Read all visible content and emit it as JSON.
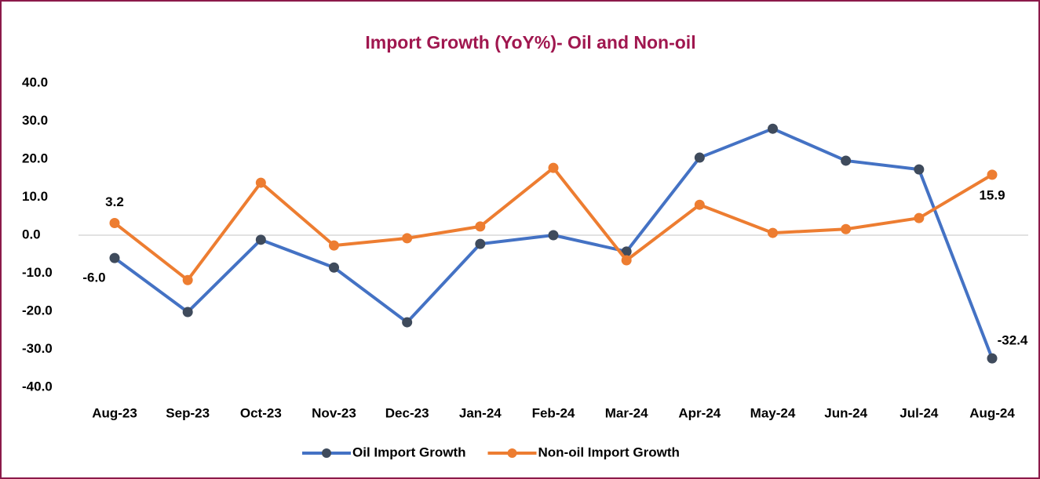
{
  "chart_data": {
    "type": "line",
    "title": "Import Growth (YoY%)- Oil and Non-oil",
    "categories": [
      "Aug-23",
      "Sep-23",
      "Oct-23",
      "Nov-23",
      "Dec-23",
      "Jan-24",
      "Feb-24",
      "Mar-24",
      "Apr-24",
      "May-24",
      "Jun-24",
      "Jul-24",
      "Aug-24"
    ],
    "series": [
      {
        "name": "Oil Import Growth",
        "color": "#4472c4",
        "marker_color": "#3f4b5c",
        "values": [
          -6.0,
          -20.2,
          -1.2,
          -8.5,
          -22.9,
          -2.3,
          0.0,
          -4.3,
          20.4,
          28.0,
          19.6,
          17.3,
          -32.4
        ],
        "value_labels": [
          "-6.0",
          null,
          null,
          null,
          null,
          null,
          null,
          null,
          null,
          null,
          null,
          null,
          "-32.4"
        ]
      },
      {
        "name": "Non-oil Import Growth",
        "color": "#ed7d31",
        "marker_color": "#ed7d31",
        "values": [
          3.2,
          -11.8,
          13.8,
          -2.7,
          -0.8,
          2.3,
          17.7,
          -6.6,
          8.0,
          0.6,
          1.6,
          4.5,
          15.9
        ],
        "value_labels": [
          "3.2",
          null,
          null,
          null,
          null,
          null,
          null,
          null,
          null,
          null,
          null,
          null,
          "15.9"
        ]
      }
    ],
    "ylim": [
      -40,
      40
    ],
    "yticks": [
      {
        "value": -40,
        "label": "-40.0"
      },
      {
        "value": -30,
        "label": "-30.0"
      },
      {
        "value": -20,
        "label": "-20.0"
      },
      {
        "value": -10,
        "label": "-10.0"
      },
      {
        "value": 0,
        "label": "0.0"
      },
      {
        "value": 10,
        "label": "10.0"
      },
      {
        "value": 20,
        "label": "20.0"
      },
      {
        "value": 30,
        "label": "30.0"
      },
      {
        "value": 40,
        "label": "40.0"
      }
    ],
    "grid": false,
    "legend": "bottom"
  }
}
